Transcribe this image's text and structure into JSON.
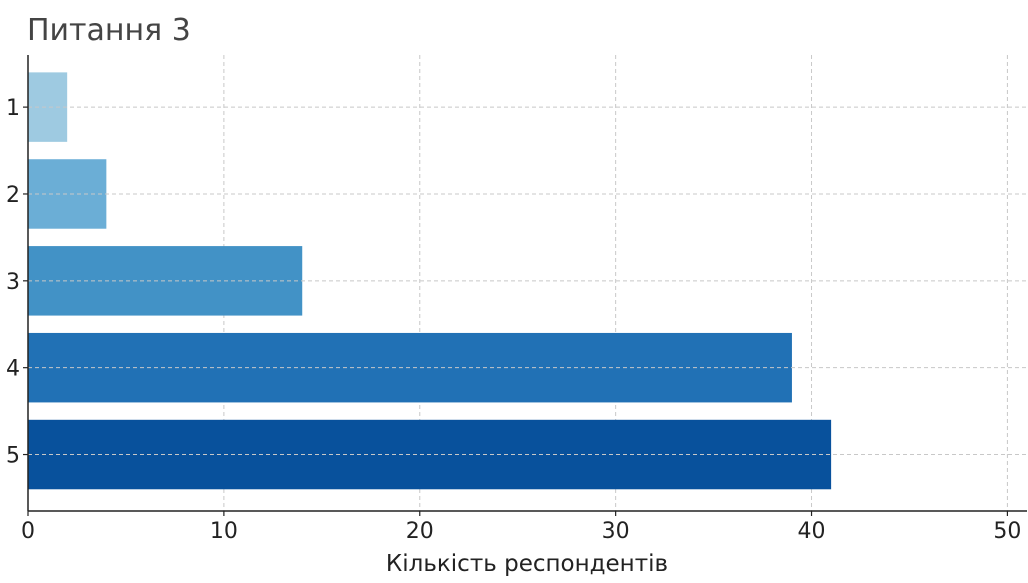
{
  "chart_data": {
    "type": "bar",
    "orientation": "horizontal",
    "title": "Питання 3",
    "xlabel": "Кількість респондентів",
    "ylabel": "",
    "categories": [
      "1",
      "2",
      "3",
      "4",
      "5"
    ],
    "values": [
      2,
      4,
      14,
      39,
      41
    ],
    "colors": [
      "#9ecae1",
      "#6baed6",
      "#4292c6",
      "#2171b5",
      "#08519c"
    ],
    "xlim": [
      0,
      51
    ],
    "xticks": [
      0,
      10,
      20,
      30,
      40,
      50
    ],
    "grid": true
  }
}
